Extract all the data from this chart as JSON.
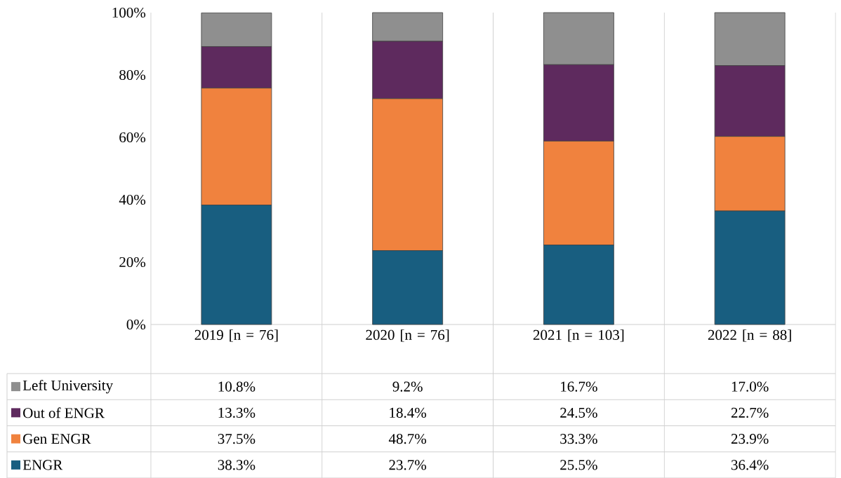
{
  "chart_data": {
    "type": "bar",
    "stacked": true,
    "categories": [
      "2019 [n = 76]",
      "2020 [n = 76]",
      "2021 [n = 103]",
      "2022 [n = 88]"
    ],
    "series": [
      {
        "name": "ENGR",
        "color": "#185e80",
        "values": [
          38.3,
          23.7,
          25.5,
          36.4
        ],
        "value_labels": [
          "38.3%",
          "23.7%",
          "25.5%",
          "36.4%"
        ]
      },
      {
        "name": "Gen ENGR",
        "color": "#f0823e",
        "values": [
          37.5,
          48.7,
          33.3,
          23.9
        ],
        "value_labels": [
          "37.5%",
          "48.7%",
          "33.3%",
          "23.9%"
        ]
      },
      {
        "name": "Out of ENGR",
        "color": "#5e2a5e",
        "values": [
          13.3,
          18.4,
          24.5,
          22.7
        ],
        "value_labels": [
          "13.3%",
          "18.4%",
          "24.5%",
          "22.7%"
        ]
      },
      {
        "name": "Left University",
        "color": "#8f8f8f",
        "values": [
          10.8,
          9.2,
          16.7,
          17.0
        ],
        "value_labels": [
          "10.8%",
          "9.2%",
          "16.7%",
          "17.0%"
        ]
      }
    ],
    "ylim": [
      0,
      100
    ],
    "yticks": [
      {
        "value": 0,
        "label": "0%"
      },
      {
        "value": 20,
        "label": "20%"
      },
      {
        "value": 40,
        "label": "40%"
      },
      {
        "value": 60,
        "label": "60%"
      },
      {
        "value": 80,
        "label": "80%"
      },
      {
        "value": 100,
        "label": "100%"
      }
    ],
    "legend": "bottom"
  }
}
